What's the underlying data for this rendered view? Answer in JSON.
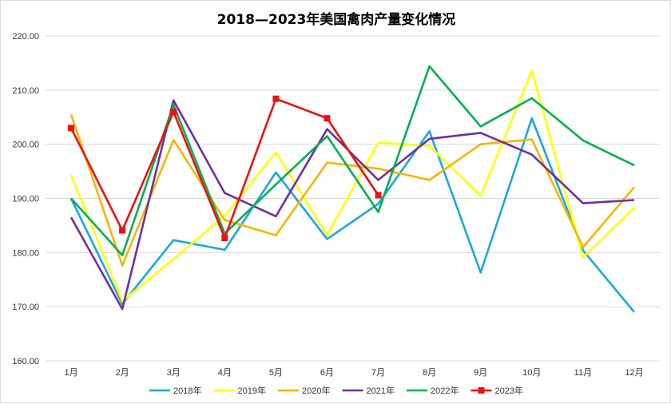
{
  "chart_data": {
    "type": "line",
    "title": "2018—2023年美国禽肉产量变化情况",
    "xlabel": "",
    "ylabel": "",
    "categories": [
      "1月",
      "2月",
      "3月",
      "4月",
      "5月",
      "6月",
      "7月",
      "8月",
      "9月",
      "10月",
      "11月",
      "12月"
    ],
    "ylim": [
      160,
      220
    ],
    "yticks": [
      "160.00",
      "170.00",
      "180.00",
      "190.00",
      "200.00",
      "210.00",
      "220.00"
    ],
    "grid": true,
    "legend_position": "bottom",
    "series": [
      {
        "name": "2018年",
        "color": "#1ba7e0",
        "marker": "none",
        "values": [
          190.0,
          170.5,
          182.3,
          180.5,
          194.8,
          182.5,
          189.0,
          202.4,
          176.3,
          204.8,
          180.4,
          169.0
        ]
      },
      {
        "name": "2019年",
        "color": "#ffff00",
        "marker": "none",
        "values": [
          194.3,
          171.0,
          178.8,
          186.8,
          198.5,
          183.2,
          200.3,
          199.7,
          190.5,
          213.6,
          179.1,
          188.3
        ]
      },
      {
        "name": "2020年",
        "color": "#f7b500",
        "marker": "none",
        "values": [
          205.5,
          177.6,
          200.8,
          186.0,
          183.2,
          196.6,
          195.5,
          193.4,
          200.0,
          200.9,
          181.0,
          192.1
        ]
      },
      {
        "name": "2021年",
        "color": "#7030a0",
        "marker": "none",
        "values": [
          186.5,
          169.6,
          208.1,
          191.0,
          186.7,
          202.8,
          193.4,
          201.0,
          202.1,
          198.1,
          189.1,
          189.7
        ]
      },
      {
        "name": "2022年",
        "color": "#00b050",
        "marker": "none",
        "values": [
          190.0,
          179.5,
          207.3,
          183.5,
          192.6,
          201.5,
          187.5,
          214.4,
          203.3,
          208.5,
          200.7,
          196.1
        ]
      },
      {
        "name": "2023年",
        "color": "#ee1111",
        "marker": "square",
        "values": [
          203.0,
          184.1,
          206.0,
          182.7,
          208.4,
          204.8,
          190.6,
          null,
          null,
          null,
          null,
          null
        ]
      }
    ]
  }
}
